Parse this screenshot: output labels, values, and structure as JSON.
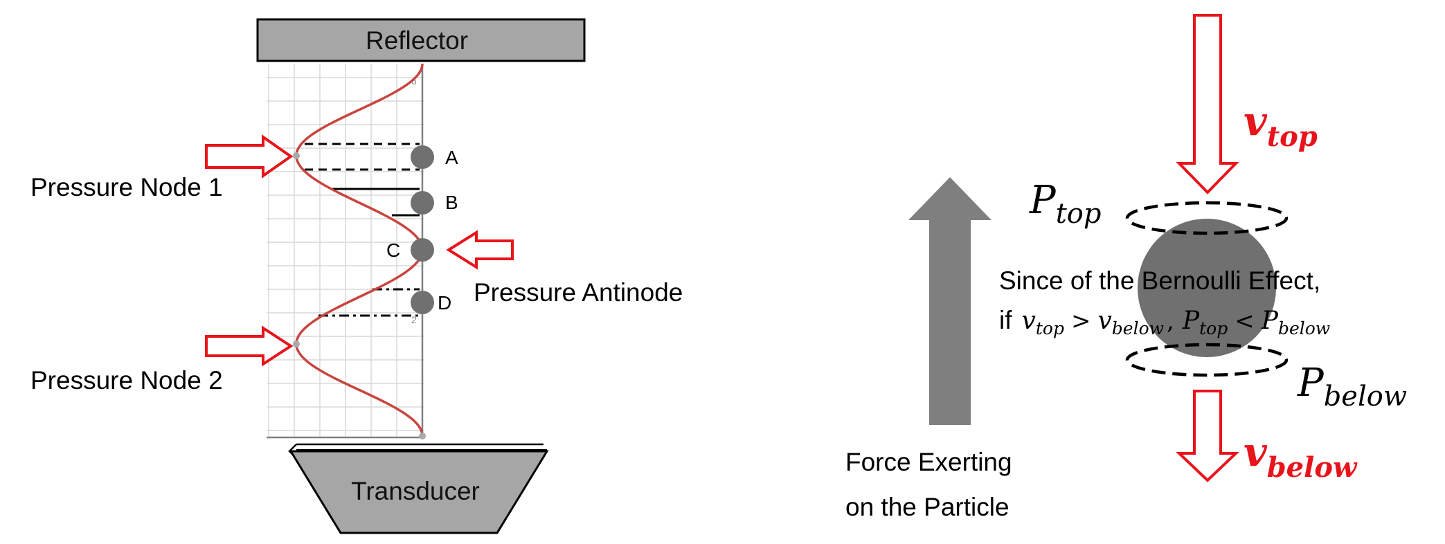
{
  "left_diagram": {
    "reflector_label": "Reflector",
    "transducer_label": "Transducer",
    "node1_label": "Pressure Node 1",
    "node2_label": "Pressure Node 2",
    "antinode_label": "Pressure Antinode",
    "particles": [
      "A",
      "B",
      "C",
      "D"
    ]
  },
  "right_diagram": {
    "force_label_line1": "Force Exerting",
    "force_label_line2": "on the Particle",
    "v_top": {
      "base": "v",
      "sub": "top"
    },
    "v_below": {
      "base": "v",
      "sub": "below"
    },
    "p_top": {
      "base": "P",
      "sub": "top"
    },
    "p_below": {
      "base": "P",
      "sub": "below"
    },
    "bernoulli_line1": "Since of the Bernoulli Effect,",
    "bernoulli_if": "if",
    "op_gt": ">",
    "op_comma": ",",
    "op_lt": "<"
  },
  "colors": {
    "red_arrow": "#e8141b",
    "wave": "#c8453f",
    "particle": "#707070",
    "box_fill": "#a6a6a6",
    "force_arrow": "#7f7f7f",
    "grid": "#d9d9d9"
  }
}
